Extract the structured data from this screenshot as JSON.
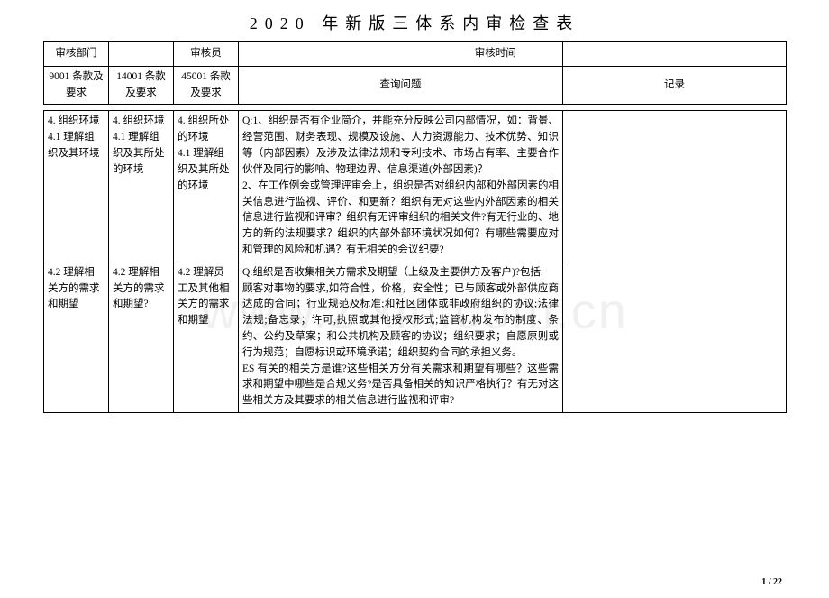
{
  "title": "2020 年新版三体系内审检查表",
  "header": {
    "dept_label": "审核部门",
    "auditor_label": "审核员",
    "time_label": "审核时间",
    "col1": "9001 条款及要求",
    "col2": "14001 条款及要求",
    "col3": "45001 条款及要求",
    "col4": "查询问题",
    "col5": "记录"
  },
  "rows": [
    {
      "c1": "4. 组织环境\n4.1 理解组织及其环境",
      "c2": "4. 组织环境\n4.1 理解组织及其所处的环境",
      "c3": "4. 组织所处的环境\n4.1 理解组织及其所处的环境",
      "c4": "Q:1、组织是否有企业简介，并能充分反映公司内部情况，如：背景、经营范围、财务表现、规模及设施、人力资源能力、技术优势、知识等（内部因素）及涉及法律法规和专利技术、市场占有率、主要合作伙伴及同行的影响、物理边界、信息渠道(外部因素)？\n2、在工作例会或管理评审会上，组织是否对组织内部和外部因素的相关信息进行监视、评价、和更新？组织有无对这些内外部因素的相关信息进行监视和评审？组织有无评审组织的相关文件?有无行业的、地方的新的法规要求？组织的内部外部环境状况如何？有哪些需要应对和管理的风险和机遇？有无相关的会议纪要?",
      "c5": ""
    },
    {
      "c1": "4.2 理解相关方的需求和期望",
      "c2": "4.2 理解相关方的需求和期望?",
      "c3": "4.2 理解员工及其他相关方的需求和期望",
      "c4": "Q:组织是否收集相关方需求及期望（上级及主要供方及客户)?包括:\n顾客对事物的要求,如符合性，价格，安全性；已与顾客或外部供应商达成的合同；行业规范及标准;和社区团体或非政府组织的协议;法律法规;备忘录；许可,执照或其他授权形式;监管机构发布的制度、条约、公约及草案；和公共机构及顾客的协议；组织要求；自愿原则或行为规范；自愿标识或环境承诺；组织契约合同的承担义务。\nES 有关的相关方是谁?这些相关方分有关需求和期望有哪些？这些需求和期望中哪些是合规义务?是否具备相关的知识严格执行？有无对这些相关方及其要求的相关信息进行监视和评审?",
      "c5": ""
    }
  ],
  "watermark": "www.zixin.com.cn",
  "page_num": "1 / 22"
}
